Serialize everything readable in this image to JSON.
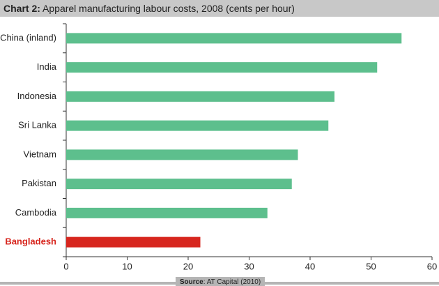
{
  "chart_data": {
    "type": "hbar",
    "title_label": "Chart 2:",
    "title": "Apparel manufacturing labour costs, 2008 (cents per hour)",
    "categories": [
      "China (inland)",
      "India",
      "Indonesia",
      "Sri Lanka",
      "Vietnam",
      "Pakistan",
      "Cambodia",
      "Bangladesh"
    ],
    "values": [
      55,
      51,
      44,
      43,
      38,
      37,
      33,
      22
    ],
    "colors": [
      "#5dbf8d",
      "#5dbf8d",
      "#5dbf8d",
      "#5dbf8d",
      "#5dbf8d",
      "#5dbf8d",
      "#5dbf8d",
      "#d7261e"
    ],
    "xlim": [
      0,
      60
    ],
    "xticks": [
      0,
      10,
      20,
      30,
      40,
      50,
      60
    ],
    "grid": false,
    "source_label": "Source",
    "source": ": AT Capital (2010)"
  }
}
